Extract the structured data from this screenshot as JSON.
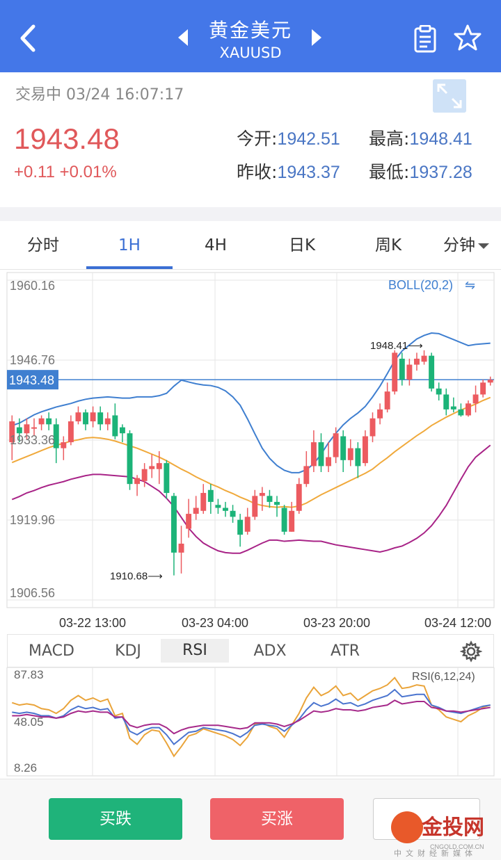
{
  "header": {
    "title": "黄金美元",
    "symbol": "XAUUSD",
    "icons": {
      "back": "chevron-left-icon",
      "prev": "triangle-left-icon",
      "next": "triangle-right-icon",
      "notes": "clipboard-icon",
      "favorite": "star-icon"
    }
  },
  "quote": {
    "status": "交易中 03/24 16:07:17",
    "price": "1943.48",
    "change": "+0.11 +0.01%",
    "open_label": "今开:",
    "open_value": "1942.51",
    "high_label": "最高:",
    "high_value": "1948.41",
    "prev_close_label": "昨收:",
    "prev_close_value": "1943.37",
    "low_label": "最低:",
    "low_value": "1937.28",
    "up_color": "#e0585a",
    "value_color": "#4a76c4"
  },
  "tabs": [
    {
      "label": "分时",
      "active": false
    },
    {
      "label": "1H",
      "active": true
    },
    {
      "label": "4H",
      "active": false
    },
    {
      "label": "日K",
      "active": false
    },
    {
      "label": "周K",
      "active": false
    },
    {
      "label": "分钟",
      "active": false,
      "dropdown": true
    }
  ],
  "indicator_tabs": [
    {
      "label": "MACD",
      "active": false
    },
    {
      "label": "KDJ",
      "active": false
    },
    {
      "label": "RSI",
      "active": true
    },
    {
      "label": "ADX",
      "active": false
    },
    {
      "label": "ATR",
      "active": false
    }
  ],
  "footer": {
    "sell_label": "买跌",
    "buy_label": "买涨",
    "logo_text": "金投网",
    "logo_url": "CNGOLD.COM.CN",
    "logo_sub": "中文财经新媒体"
  },
  "chart_data": [
    {
      "type": "candlestick",
      "overlay": "BOLL(20,2)",
      "ylim": [
        1906.56,
        1960.16
      ],
      "y_ticks": [
        "1960.16",
        "1946.76",
        "1933.36",
        "1919.96",
        "1906.56"
      ],
      "x_ticks": [
        "03-22 13:00",
        "03-23 04:00",
        "03-23 20:00",
        "03-24 12:00"
      ],
      "current_price": "1943.48",
      "annotations": [
        {
          "text": "1948.41⟶",
          "value": 1948.41
        },
        {
          "text": "1910.68⟶",
          "value": 1910.68
        }
      ],
      "colors": {
        "up": "#ec5b60",
        "down": "#1cb378",
        "mid": "#f0a93b",
        "upper": "#3f7fd0",
        "lower": "#a82387",
        "price_line": "#3f7fd0"
      },
      "candles": [
        [
          1933.0,
          1936.5,
          1937.5,
          1930.0
        ],
        [
          1935.5,
          1934.5,
          1937.0,
          1933.0
        ],
        [
          1934.5,
          1936.0,
          1937.0,
          1933.5
        ],
        [
          1935.5,
          1935.5,
          1937.0,
          1934.0
        ],
        [
          1936.0,
          1937.0,
          1937.5,
          1935.0
        ],
        [
          1937.0,
          1936.0,
          1938.0,
          1935.0
        ],
        [
          1936.0,
          1932.0,
          1937.0,
          1929.5
        ],
        [
          1932.0,
          1933.0,
          1934.0,
          1930.0
        ],
        [
          1933.0,
          1936.5,
          1937.5,
          1932.5
        ],
        [
          1936.5,
          1938.0,
          1939.0,
          1936.0
        ],
        [
          1938.0,
          1936.0,
          1938.5,
          1935.0
        ],
        [
          1936.5,
          1938.0,
          1939.0,
          1935.5
        ],
        [
          1938.0,
          1936.0,
          1939.0,
          1935.0
        ],
        [
          1936.0,
          1937.0,
          1938.0,
          1935.0
        ],
        [
          1937.5,
          1934.0,
          1939.5,
          1933.5
        ],
        [
          1935.5,
          1934.5,
          1936.0,
          1933.0
        ],
        [
          1934.5,
          1926.0,
          1935.0,
          1925.0
        ],
        [
          1926.0,
          1927.0,
          1927.5,
          1924.0
        ],
        [
          1926.5,
          1928.5,
          1929.5,
          1925.5
        ],
        [
          1928.5,
          1929.0,
          1931.0,
          1927.0
        ],
        [
          1928.5,
          1929.5,
          1931.5,
          1926.0
        ],
        [
          1929.5,
          1924.5,
          1930.0,
          1923.5
        ],
        [
          1924.0,
          1914.5,
          1924.5,
          1910.68
        ],
        [
          1914.5,
          1916.0,
          1919.0,
          1911.0
        ],
        [
          1918.5,
          1921.0,
          1923.5,
          1917.0
        ],
        [
          1921.0,
          1922.0,
          1924.0,
          1920.0
        ],
        [
          1921.5,
          1924.5,
          1926.0,
          1921.0
        ],
        [
          1925.0,
          1923.0,
          1926.0,
          1921.0
        ],
        [
          1922.5,
          1922.0,
          1923.5,
          1921.0
        ],
        [
          1922.0,
          1921.5,
          1923.0,
          1920.5
        ],
        [
          1921.5,
          1920.5,
          1922.5,
          1919.5
        ],
        [
          1920.0,
          1917.5,
          1921.0,
          1915.5
        ],
        [
          1918.0,
          1920.5,
          1922.0,
          1917.5
        ],
        [
          1920.5,
          1924.0,
          1925.0,
          1920.0
        ],
        [
          1924.0,
          1924.5,
          1925.5,
          1921.5
        ],
        [
          1924.0,
          1923.0,
          1925.0,
          1922.0
        ],
        [
          1923.0,
          1922.5,
          1924.0,
          1920.5
        ],
        [
          1922.0,
          1918.0,
          1922.5,
          1917.5
        ],
        [
          1918.0,
          1921.5,
          1923.0,
          1918.0
        ],
        [
          1921.5,
          1926.0,
          1927.0,
          1921.0
        ],
        [
          1926.0,
          1929.0,
          1931.5,
          1925.5
        ],
        [
          1929.0,
          1933.0,
          1935.0,
          1928.0
        ],
        [
          1933.0,
          1929.0,
          1934.5,
          1928.0
        ],
        [
          1929.0,
          1930.5,
          1933.0,
          1928.0
        ],
        [
          1930.5,
          1934.5,
          1935.5,
          1929.5
        ],
        [
          1934.0,
          1930.0,
          1935.0,
          1928.0
        ],
        [
          1930.0,
          1932.0,
          1933.5,
          1929.0
        ],
        [
          1932.0,
          1929.0,
          1933.0,
          1927.0
        ],
        [
          1929.5,
          1934.0,
          1935.0,
          1929.0
        ],
        [
          1934.0,
          1937.0,
          1938.0,
          1933.0
        ],
        [
          1937.0,
          1938.5,
          1939.5,
          1936.0
        ],
        [
          1938.5,
          1941.5,
          1943.0,
          1938.0
        ],
        [
          1941.5,
          1948.0,
          1948.41,
          1941.0
        ],
        [
          1947.0,
          1943.5,
          1948.0,
          1942.5
        ],
        [
          1943.5,
          1946.0,
          1947.0,
          1942.5
        ],
        [
          1946.0,
          1947.0,
          1948.0,
          1945.0
        ],
        [
          1946.5,
          1947.5,
          1948.41,
          1946.0
        ],
        [
          1947.5,
          1942.0,
          1948.0,
          1941.5
        ],
        [
          1942.0,
          1941.0,
          1943.0,
          1940.0
        ],
        [
          1941.0,
          1938.5,
          1942.0,
          1937.5
        ],
        [
          1939.0,
          1938.5,
          1940.5,
          1938.0
        ],
        [
          1938.5,
          1937.5,
          1939.5,
          1937.28
        ],
        [
          1937.5,
          1939.5,
          1940.0,
          1937.28
        ],
        [
          1939.5,
          1941.0,
          1942.5,
          1938.0
        ],
        [
          1941.0,
          1943.0,
          1943.5,
          1940.5
        ],
        [
          1943.0,
          1943.48,
          1944.0,
          1942.5
        ]
      ],
      "boll_upper": [
        1935.8,
        1936.2,
        1936.9,
        1937.6,
        1938.1,
        1938.5,
        1938.9,
        1939.2,
        1939.5,
        1939.9,
        1940.2,
        1940.4,
        1940.5,
        1940.6,
        1940.5,
        1940.4,
        1940.4,
        1940.6,
        1940.6,
        1940.6,
        1940.8,
        1941.2,
        1942.4,
        1943.4,
        1943.1,
        1942.8,
        1942.6,
        1942.5,
        1942.2,
        1941.6,
        1940.6,
        1939.2,
        1936.9,
        1934.4,
        1932.0,
        1930.3,
        1929.1,
        1928.3,
        1927.9,
        1927.9,
        1928.4,
        1929.4,
        1931.0,
        1932.9,
        1934.5,
        1935.9,
        1937.0,
        1937.9,
        1939.0,
        1940.6,
        1942.4,
        1944.5,
        1946.7,
        1948.3,
        1949.3,
        1950.3,
        1950.9,
        1951.3,
        1951.2,
        1950.7,
        1950.2,
        1949.7,
        1949.2,
        1949.4,
        1949.5,
        1949.6
      ],
      "boll_mid": [
        1929.6,
        1930.1,
        1930.6,
        1931.1,
        1931.6,
        1932.1,
        1932.5,
        1932.8,
        1933.2,
        1933.4,
        1933.7,
        1933.8,
        1933.7,
        1933.5,
        1933.2,
        1932.8,
        1932.4,
        1932.0,
        1931.5,
        1931.0,
        1930.5,
        1929.9,
        1929.2,
        1928.5,
        1927.9,
        1927.2,
        1926.6,
        1926.0,
        1925.5,
        1924.9,
        1924.4,
        1923.8,
        1923.3,
        1922.7,
        1922.4,
        1922.2,
        1922.1,
        1922.2,
        1922.1,
        1922.3,
        1922.8,
        1923.5,
        1924.2,
        1924.8,
        1925.4,
        1926.0,
        1926.6,
        1927.2,
        1927.8,
        1928.5,
        1929.5,
        1930.4,
        1931.4,
        1932.3,
        1933.2,
        1934.1,
        1934.9,
        1935.8,
        1936.5,
        1937.2,
        1937.8,
        1938.4,
        1938.9,
        1939.4,
        1940.0,
        1940.5
      ],
      "boll_lower": [
        1923.4,
        1923.9,
        1924.5,
        1924.9,
        1925.4,
        1925.8,
        1926.1,
        1926.4,
        1926.8,
        1927.1,
        1927.4,
        1927.6,
        1927.6,
        1927.5,
        1927.4,
        1927.3,
        1927.2,
        1926.8,
        1926.4,
        1925.6,
        1924.8,
        1923.6,
        1922.2,
        1920.4,
        1918.6,
        1917.2,
        1916.1,
        1915.4,
        1914.8,
        1914.5,
        1914.4,
        1914.4,
        1914.9,
        1915.5,
        1916.1,
        1916.6,
        1916.6,
        1916.4,
        1916.5,
        1916.6,
        1916.5,
        1916.4,
        1916.4,
        1916.1,
        1915.8,
        1915.6,
        1915.4,
        1915.2,
        1915.0,
        1914.8,
        1914.6,
        1914.9,
        1915.3,
        1915.6,
        1916.2,
        1916.9,
        1917.8,
        1919.0,
        1920.6,
        1922.4,
        1924.6,
        1926.8,
        1928.9,
        1930.5,
        1931.5,
        1932.5
      ]
    },
    {
      "type": "line",
      "name": "RSI(6,12,24)",
      "ylim": [
        8.26,
        87.83
      ],
      "y_ticks": [
        "87.83",
        "48.05",
        "8.26"
      ],
      "colors": {
        "rsi6": "#eaa43a",
        "rsi12": "#4a74cf",
        "rsi24": "#a6298a"
      },
      "series": [
        {
          "key": "rsi6",
          "values": [
            64,
            62,
            63,
            62,
            59,
            58,
            55,
            59,
            66,
            70,
            66,
            68,
            65,
            67,
            53,
            55,
            34,
            29,
            37,
            41,
            40,
            30,
            19,
            27,
            36,
            38,
            42,
            40,
            38,
            36,
            33,
            28,
            35,
            46,
            47,
            44,
            42,
            35,
            45,
            55,
            68,
            77,
            70,
            73,
            78,
            70,
            72,
            66,
            70,
            74,
            76,
            79,
            85,
            76,
            77,
            79,
            78,
            62,
            58,
            52,
            50,
            48,
            53,
            56,
            60,
            62
          ]
        },
        {
          "key": "rsi12",
          "values": [
            56,
            55,
            56,
            55,
            53,
            53,
            51,
            53,
            58,
            61,
            59,
            60,
            58,
            59,
            51,
            52,
            40,
            37,
            41,
            43,
            43,
            37,
            29,
            34,
            39,
            40,
            43,
            42,
            41,
            40,
            38,
            35,
            39,
            45,
            46,
            45,
            44,
            40,
            45,
            50,
            58,
            64,
            61,
            63,
            67,
            63,
            64,
            61,
            63,
            66,
            68,
            70,
            75,
            69,
            70,
            71,
            71,
            62,
            60,
            57,
            56,
            55,
            57,
            59,
            61,
            62
          ]
        },
        {
          "key": "rsi24",
          "values": [
            53,
            53,
            54,
            53,
            52,
            52,
            51,
            52,
            55,
            57,
            56,
            57,
            56,
            56,
            52,
            52,
            45,
            43,
            45,
            46,
            46,
            43,
            38,
            41,
            43,
            44,
            45,
            45,
            45,
            44,
            43,
            42,
            43,
            47,
            47,
            47,
            46,
            44,
            46,
            49,
            53,
            57,
            56,
            57,
            59,
            58,
            58,
            57,
            58,
            60,
            61,
            62,
            66,
            63,
            64,
            65,
            65,
            60,
            59,
            57,
            57,
            56,
            57,
            58,
            59,
            60
          ]
        }
      ]
    }
  ]
}
